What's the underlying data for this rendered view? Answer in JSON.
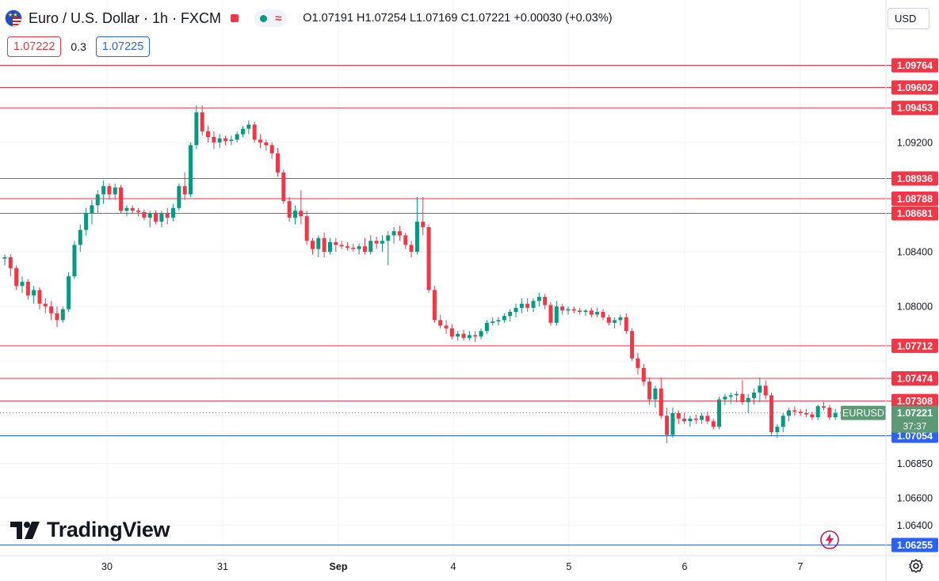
{
  "header": {
    "symbol_title": "Euro / U.S. Dollar · 1h · FXCM",
    "ohlc": {
      "o": "O1.07191",
      "h": "H1.07254",
      "l": "L1.07169",
      "c": "C1.07221",
      "change": "+0.00030 (+0.03%)"
    }
  },
  "quote": {
    "sell": "1.07222",
    "spread": "0.3",
    "buy": "1.07225"
  },
  "currency": "USD",
  "branding": {
    "logo_text": "TradingView"
  },
  "colors": {
    "up": "#089981",
    "down": "#f23645",
    "resistance": "#f23645",
    "support": "#2962ff",
    "last_price": "#5b9a75"
  },
  "chart_data": {
    "type": "candlestick",
    "symbol": "EURUSD",
    "ylim": [
      1.0625,
      1.1
    ],
    "y_ticks": [
      "1.09200",
      "1.08400",
      "1.08000",
      "1.06850",
      "1.06600",
      "1.06400"
    ],
    "x_ticks": [
      "30",
      "31",
      "Sep",
      "4",
      "5",
      "6",
      "7"
    ],
    "horizontal_levels": [
      {
        "price": 1.09764,
        "label": "1.09764",
        "kind": "resistance"
      },
      {
        "price": 1.09602,
        "label": "1.09602",
        "kind": "resistance"
      },
      {
        "price": 1.09453,
        "label": "1.09453",
        "kind": "resistance"
      },
      {
        "price": 1.08936,
        "label": "1.08936",
        "kind": "resistance"
      },
      {
        "price": 1.08788,
        "label": "1.08788",
        "kind": "resistance"
      },
      {
        "price": 1.08681,
        "label": "1.08681",
        "kind": "resistance"
      },
      {
        "price": 1.07712,
        "label": "1.07712",
        "kind": "resistance"
      },
      {
        "price": 1.07474,
        "label": "1.07474",
        "kind": "resistance"
      },
      {
        "price": 1.07308,
        "label": "1.07308",
        "kind": "resistance"
      },
      {
        "price": 1.07054,
        "label": "1.07054",
        "kind": "support"
      },
      {
        "price": 1.06255,
        "label": "1.06255",
        "kind": "support"
      }
    ],
    "last_price": {
      "value": 1.07221,
      "label": "1.07221",
      "symbol_label": "EURUSD",
      "countdown": "37:37"
    },
    "candles": [
      [
        1.0835,
        1.0838,
        1.083,
        1.0836
      ],
      [
        1.0836,
        1.0838,
        1.0822,
        1.0828
      ],
      [
        1.0828,
        1.083,
        1.0812,
        1.0815
      ],
      [
        1.0815,
        1.0822,
        1.081,
        1.0818
      ],
      [
        1.0818,
        1.082,
        1.0805,
        1.0808
      ],
      [
        1.0808,
        1.0815,
        1.0802,
        1.0812
      ],
      [
        1.0812,
        1.0814,
        1.0798,
        1.0802
      ],
      [
        1.0802,
        1.0806,
        1.0795,
        1.08
      ],
      [
        1.08,
        1.0804,
        1.079,
        1.0795
      ],
      [
        1.0795,
        1.08,
        1.0785,
        1.079
      ],
      [
        1.079,
        1.08,
        1.0788,
        1.0798
      ],
      [
        1.0798,
        1.0825,
        1.0796,
        1.0822
      ],
      [
        1.0822,
        1.0848,
        1.082,
        1.0845
      ],
      [
        1.0845,
        1.086,
        1.084,
        1.0856
      ],
      [
        1.0856,
        1.0872,
        1.0852,
        1.0868
      ],
      [
        1.0868,
        1.0878,
        1.086,
        1.0874
      ],
      [
        1.0874,
        1.0885,
        1.0868,
        1.0882
      ],
      [
        1.0882,
        1.0892,
        1.0875,
        1.0888
      ],
      [
        1.0888,
        1.089,
        1.0878,
        1.0882
      ],
      [
        1.0882,
        1.089,
        1.0878,
        1.0887
      ],
      [
        1.0887,
        1.0889,
        1.0868,
        1.087
      ],
      [
        1.087,
        1.0874,
        1.0866,
        1.0872
      ],
      [
        1.0872,
        1.0874,
        1.0868,
        1.087
      ],
      [
        1.087,
        1.0872,
        1.0866,
        1.0869
      ],
      [
        1.0869,
        1.0871,
        1.0863,
        1.0865
      ],
      [
        1.0865,
        1.087,
        1.0858,
        1.0868
      ],
      [
        1.0868,
        1.087,
        1.086,
        1.0862
      ],
      [
        1.0862,
        1.087,
        1.0858,
        1.0868
      ],
      [
        1.0868,
        1.0872,
        1.086,
        1.0865
      ],
      [
        1.0865,
        1.0875,
        1.0862,
        1.0872
      ],
      [
        1.0872,
        1.089,
        1.087,
        1.0888
      ],
      [
        1.0888,
        1.0898,
        1.0878,
        1.0882
      ],
      [
        1.0882,
        1.092,
        1.088,
        1.0918
      ],
      [
        1.0918,
        1.0947,
        1.0915,
        1.0942
      ],
      [
        1.0942,
        1.0947,
        1.0925,
        1.0928
      ],
      [
        1.0928,
        1.0932,
        1.092,
        1.0924
      ],
      [
        1.0924,
        1.0928,
        1.0915,
        1.092
      ],
      [
        1.092,
        1.0926,
        1.0916,
        1.0923
      ],
      [
        1.0923,
        1.0925,
        1.0918,
        1.0921
      ],
      [
        1.0921,
        1.0925,
        1.0918,
        1.0922
      ],
      [
        1.0922,
        1.0928,
        1.092,
        1.0926
      ],
      [
        1.0926,
        1.0932,
        1.0924,
        1.093
      ],
      [
        1.093,
        1.0936,
        1.0926,
        1.0933
      ],
      [
        1.0933,
        1.0935,
        1.092,
        1.0922
      ],
      [
        1.0922,
        1.0926,
        1.0916,
        1.092
      ],
      [
        1.092,
        1.0922,
        1.0914,
        1.0918
      ],
      [
        1.0918,
        1.092,
        1.0908,
        1.0912
      ],
      [
        1.0912,
        1.0916,
        1.0895,
        1.0898
      ],
      [
        1.0898,
        1.09,
        1.0875,
        1.0877
      ],
      [
        1.0877,
        1.088,
        1.0862,
        1.0865
      ],
      [
        1.0865,
        1.0874,
        1.086,
        1.087
      ],
      [
        1.087,
        1.0885,
        1.086,
        1.0866
      ],
      [
        1.0866,
        1.087,
        1.0845,
        1.0848
      ],
      [
        1.0848,
        1.085,
        1.0838,
        1.0842
      ],
      [
        1.0842,
        1.0852,
        1.0836,
        1.085
      ],
      [
        1.085,
        1.0854,
        1.0836,
        1.084
      ],
      [
        1.084,
        1.085,
        1.0838,
        1.0847
      ],
      [
        1.0847,
        1.085,
        1.084,
        1.0845
      ],
      [
        1.0845,
        1.0848,
        1.0842,
        1.0844
      ],
      [
        1.0844,
        1.0847,
        1.0841,
        1.0843
      ],
      [
        1.0843,
        1.0846,
        1.084,
        1.0842
      ],
      [
        1.0842,
        1.0846,
        1.0838,
        1.0844
      ],
      [
        1.0844,
        1.085,
        1.0838,
        1.084
      ],
      [
        1.084,
        1.0852,
        1.0838,
        1.0848
      ],
      [
        1.0848,
        1.0851,
        1.0842,
        1.0846
      ],
      [
        1.0846,
        1.0852,
        1.084,
        1.0848
      ],
      [
        1.0848,
        1.0855,
        1.083,
        1.0852
      ],
      [
        1.0852,
        1.0858,
        1.0846,
        1.0855
      ],
      [
        1.0855,
        1.0859,
        1.0848,
        1.0852
      ],
      [
        1.0852,
        1.0854,
        1.0842,
        1.0845
      ],
      [
        1.0845,
        1.0848,
        1.0836,
        1.084
      ],
      [
        1.084,
        1.088,
        1.0838,
        1.0862
      ],
      [
        1.0862,
        1.088,
        1.0852,
        1.0858
      ],
      [
        1.0858,
        1.086,
        1.081,
        1.0812
      ],
      [
        1.0812,
        1.0815,
        1.0788,
        1.079
      ],
      [
        1.079,
        1.0794,
        1.0784,
        1.0786
      ],
      [
        1.0786,
        1.079,
        1.078,
        1.0784
      ],
      [
        1.0784,
        1.0787,
        1.0776,
        1.0778
      ],
      [
        1.0778,
        1.0782,
        1.0775,
        1.078
      ],
      [
        1.078,
        1.0783,
        1.0775,
        1.0777
      ],
      [
        1.0777,
        1.0782,
        1.0775,
        1.0779
      ],
      [
        1.0779,
        1.0782,
        1.0774,
        1.0778
      ],
      [
        1.0778,
        1.0784,
        1.0776,
        1.0782
      ],
      [
        1.0782,
        1.079,
        1.078,
        1.0788
      ],
      [
        1.0788,
        1.0792,
        1.0786,
        1.0789
      ],
      [
        1.0789,
        1.0792,
        1.0786,
        1.079
      ],
      [
        1.079,
        1.0795,
        1.0788,
        1.0793
      ],
      [
        1.0793,
        1.0798,
        1.0789,
        1.0796
      ],
      [
        1.0796,
        1.0802,
        1.0792,
        1.0799
      ],
      [
        1.0799,
        1.0806,
        1.0795,
        1.0802
      ],
      [
        1.0802,
        1.0806,
        1.0796,
        1.0799
      ],
      [
        1.0799,
        1.0806,
        1.0796,
        1.0804
      ],
      [
        1.0804,
        1.081,
        1.08,
        1.0807
      ],
      [
        1.0807,
        1.0809,
        1.0798,
        1.0801
      ],
      [
        1.0801,
        1.0803,
        1.0786,
        1.0788
      ],
      [
        1.0788,
        1.0804,
        1.0786,
        1.08
      ],
      [
        1.08,
        1.0802,
        1.0794,
        1.0797
      ],
      [
        1.0797,
        1.08,
        1.0794,
        1.0798
      ],
      [
        1.0798,
        1.08,
        1.0795,
        1.0797
      ],
      [
        1.0797,
        1.0799,
        1.0794,
        1.0796
      ],
      [
        1.0796,
        1.0798,
        1.0793,
        1.0797
      ],
      [
        1.0797,
        1.0799,
        1.0792,
        1.0794
      ],
      [
        1.0794,
        1.0799,
        1.0792,
        1.0796
      ],
      [
        1.0796,
        1.0798,
        1.079,
        1.0792
      ],
      [
        1.0792,
        1.0794,
        1.0786,
        1.0788
      ],
      [
        1.0788,
        1.0792,
        1.0784,
        1.079
      ],
      [
        1.079,
        1.0794,
        1.0786,
        1.0792
      ],
      [
        1.0792,
        1.0795,
        1.078,
        1.0782
      ],
      [
        1.0782,
        1.0784,
        1.076,
        1.0762
      ],
      [
        1.0762,
        1.0766,
        1.075,
        1.0755
      ],
      [
        1.0755,
        1.0758,
        1.0742,
        1.0745
      ],
      [
        1.0745,
        1.0748,
        1.0728,
        1.0732
      ],
      [
        1.0732,
        1.0742,
        1.0726,
        1.074
      ],
      [
        1.074,
        1.0748,
        1.0718,
        1.072
      ],
      [
        1.072,
        1.0726,
        1.07,
        1.0706
      ],
      [
        1.0706,
        1.0726,
        1.0704,
        1.0722
      ],
      [
        1.0722,
        1.0724,
        1.0714,
        1.0718
      ],
      [
        1.0718,
        1.0722,
        1.0714,
        1.0716
      ],
      [
        1.0716,
        1.072,
        1.0712,
        1.0718
      ],
      [
        1.0718,
        1.0721,
        1.0714,
        1.0717
      ],
      [
        1.0717,
        1.0722,
        1.0714,
        1.072
      ],
      [
        1.072,
        1.0723,
        1.0714,
        1.0716
      ],
      [
        1.0716,
        1.0718,
        1.071,
        1.0712
      ],
      [
        1.0712,
        1.0734,
        1.071,
        1.0732
      ],
      [
        1.0732,
        1.0736,
        1.0728,
        1.0734
      ],
      [
        1.0734,
        1.0737,
        1.0729,
        1.0735
      ],
      [
        1.0735,
        1.0738,
        1.073,
        1.0736
      ],
      [
        1.0736,
        1.0746,
        1.0728,
        1.073
      ],
      [
        1.073,
        1.0736,
        1.0722,
        1.0733
      ],
      [
        1.0733,
        1.074,
        1.0728,
        1.0737
      ],
      [
        1.0737,
        1.0748,
        1.073,
        1.0742
      ],
      [
        1.0742,
        1.0746,
        1.0732,
        1.0735
      ],
      [
        1.0735,
        1.0737,
        1.0705,
        1.0708
      ],
      [
        1.0708,
        1.0714,
        1.0704,
        1.0712
      ],
      [
        1.0712,
        1.0722,
        1.0708,
        1.072
      ],
      [
        1.072,
        1.0726,
        1.0716,
        1.0724
      ],
      [
        1.0724,
        1.0727,
        1.072,
        1.0723
      ],
      [
        1.0723,
        1.0725,
        1.072,
        1.0722
      ],
      [
        1.0722,
        1.0725,
        1.0719,
        1.0721
      ],
      [
        1.0721,
        1.0723,
        1.0717,
        1.0719
      ],
      [
        1.0719,
        1.0728,
        1.0717,
        1.0727
      ],
      [
        1.0727,
        1.073,
        1.0724,
        1.0726
      ],
      [
        1.0726,
        1.0728,
        1.0717,
        1.0719
      ],
      [
        1.0719,
        1.0725,
        1.0717,
        1.0722
      ]
    ]
  }
}
